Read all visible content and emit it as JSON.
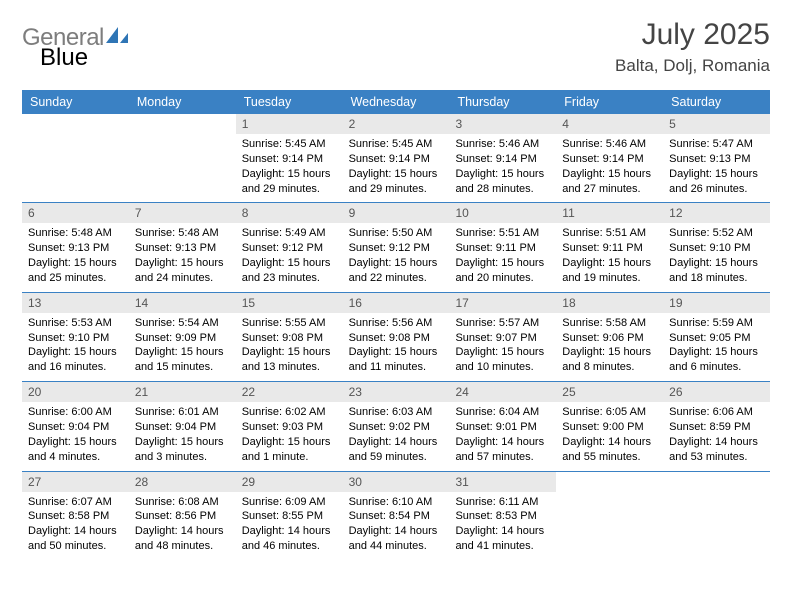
{
  "colors": {
    "accent": "#3a81c4",
    "daynum_bg": "#e9e9e9",
    "daynum_fg": "#555555",
    "body_fg": "#000000",
    "title_fg": "#444444",
    "logo_gray": "#7d7d7d",
    "logo_blue": "#2f75b5",
    "background": "#ffffff"
  },
  "logo": {
    "word1": "General",
    "word2": "Blue"
  },
  "header": {
    "title": "July 2025",
    "location": "Balta, Dolj, Romania"
  },
  "weekdays": [
    "Sunday",
    "Monday",
    "Tuesday",
    "Wednesday",
    "Thursday",
    "Friday",
    "Saturday"
  ],
  "weeks": [
    [
      {
        "n": "",
        "empty": true,
        "sunrise": "",
        "sunset": "",
        "daylight": ""
      },
      {
        "n": "",
        "empty": true,
        "sunrise": "",
        "sunset": "",
        "daylight": ""
      },
      {
        "n": "1",
        "sunrise": "Sunrise: 5:45 AM",
        "sunset": "Sunset: 9:14 PM",
        "daylight": "Daylight: 15 hours and 29 minutes."
      },
      {
        "n": "2",
        "sunrise": "Sunrise: 5:45 AM",
        "sunset": "Sunset: 9:14 PM",
        "daylight": "Daylight: 15 hours and 29 minutes."
      },
      {
        "n": "3",
        "sunrise": "Sunrise: 5:46 AM",
        "sunset": "Sunset: 9:14 PM",
        "daylight": "Daylight: 15 hours and 28 minutes."
      },
      {
        "n": "4",
        "sunrise": "Sunrise: 5:46 AM",
        "sunset": "Sunset: 9:14 PM",
        "daylight": "Daylight: 15 hours and 27 minutes."
      },
      {
        "n": "5",
        "sunrise": "Sunrise: 5:47 AM",
        "sunset": "Sunset: 9:13 PM",
        "daylight": "Daylight: 15 hours and 26 minutes."
      }
    ],
    [
      {
        "n": "6",
        "sunrise": "Sunrise: 5:48 AM",
        "sunset": "Sunset: 9:13 PM",
        "daylight": "Daylight: 15 hours and 25 minutes."
      },
      {
        "n": "7",
        "sunrise": "Sunrise: 5:48 AM",
        "sunset": "Sunset: 9:13 PM",
        "daylight": "Daylight: 15 hours and 24 minutes."
      },
      {
        "n": "8",
        "sunrise": "Sunrise: 5:49 AM",
        "sunset": "Sunset: 9:12 PM",
        "daylight": "Daylight: 15 hours and 23 minutes."
      },
      {
        "n": "9",
        "sunrise": "Sunrise: 5:50 AM",
        "sunset": "Sunset: 9:12 PM",
        "daylight": "Daylight: 15 hours and 22 minutes."
      },
      {
        "n": "10",
        "sunrise": "Sunrise: 5:51 AM",
        "sunset": "Sunset: 9:11 PM",
        "daylight": "Daylight: 15 hours and 20 minutes."
      },
      {
        "n": "11",
        "sunrise": "Sunrise: 5:51 AM",
        "sunset": "Sunset: 9:11 PM",
        "daylight": "Daylight: 15 hours and 19 minutes."
      },
      {
        "n": "12",
        "sunrise": "Sunrise: 5:52 AM",
        "sunset": "Sunset: 9:10 PM",
        "daylight": "Daylight: 15 hours and 18 minutes."
      }
    ],
    [
      {
        "n": "13",
        "sunrise": "Sunrise: 5:53 AM",
        "sunset": "Sunset: 9:10 PM",
        "daylight": "Daylight: 15 hours and 16 minutes."
      },
      {
        "n": "14",
        "sunrise": "Sunrise: 5:54 AM",
        "sunset": "Sunset: 9:09 PM",
        "daylight": "Daylight: 15 hours and 15 minutes."
      },
      {
        "n": "15",
        "sunrise": "Sunrise: 5:55 AM",
        "sunset": "Sunset: 9:08 PM",
        "daylight": "Daylight: 15 hours and 13 minutes."
      },
      {
        "n": "16",
        "sunrise": "Sunrise: 5:56 AM",
        "sunset": "Sunset: 9:08 PM",
        "daylight": "Daylight: 15 hours and 11 minutes."
      },
      {
        "n": "17",
        "sunrise": "Sunrise: 5:57 AM",
        "sunset": "Sunset: 9:07 PM",
        "daylight": "Daylight: 15 hours and 10 minutes."
      },
      {
        "n": "18",
        "sunrise": "Sunrise: 5:58 AM",
        "sunset": "Sunset: 9:06 PM",
        "daylight": "Daylight: 15 hours and 8 minutes."
      },
      {
        "n": "19",
        "sunrise": "Sunrise: 5:59 AM",
        "sunset": "Sunset: 9:05 PM",
        "daylight": "Daylight: 15 hours and 6 minutes."
      }
    ],
    [
      {
        "n": "20",
        "sunrise": "Sunrise: 6:00 AM",
        "sunset": "Sunset: 9:04 PM",
        "daylight": "Daylight: 15 hours and 4 minutes."
      },
      {
        "n": "21",
        "sunrise": "Sunrise: 6:01 AM",
        "sunset": "Sunset: 9:04 PM",
        "daylight": "Daylight: 15 hours and 3 minutes."
      },
      {
        "n": "22",
        "sunrise": "Sunrise: 6:02 AM",
        "sunset": "Sunset: 9:03 PM",
        "daylight": "Daylight: 15 hours and 1 minute."
      },
      {
        "n": "23",
        "sunrise": "Sunrise: 6:03 AM",
        "sunset": "Sunset: 9:02 PM",
        "daylight": "Daylight: 14 hours and 59 minutes."
      },
      {
        "n": "24",
        "sunrise": "Sunrise: 6:04 AM",
        "sunset": "Sunset: 9:01 PM",
        "daylight": "Daylight: 14 hours and 57 minutes."
      },
      {
        "n": "25",
        "sunrise": "Sunrise: 6:05 AM",
        "sunset": "Sunset: 9:00 PM",
        "daylight": "Daylight: 14 hours and 55 minutes."
      },
      {
        "n": "26",
        "sunrise": "Sunrise: 6:06 AM",
        "sunset": "Sunset: 8:59 PM",
        "daylight": "Daylight: 14 hours and 53 minutes."
      }
    ],
    [
      {
        "n": "27",
        "sunrise": "Sunrise: 6:07 AM",
        "sunset": "Sunset: 8:58 PM",
        "daylight": "Daylight: 14 hours and 50 minutes."
      },
      {
        "n": "28",
        "sunrise": "Sunrise: 6:08 AM",
        "sunset": "Sunset: 8:56 PM",
        "daylight": "Daylight: 14 hours and 48 minutes."
      },
      {
        "n": "29",
        "sunrise": "Sunrise: 6:09 AM",
        "sunset": "Sunset: 8:55 PM",
        "daylight": "Daylight: 14 hours and 46 minutes."
      },
      {
        "n": "30",
        "sunrise": "Sunrise: 6:10 AM",
        "sunset": "Sunset: 8:54 PM",
        "daylight": "Daylight: 14 hours and 44 minutes."
      },
      {
        "n": "31",
        "sunrise": "Sunrise: 6:11 AM",
        "sunset": "Sunset: 8:53 PM",
        "daylight": "Daylight: 14 hours and 41 minutes."
      },
      {
        "n": "",
        "empty": true,
        "sunrise": "",
        "sunset": "",
        "daylight": ""
      },
      {
        "n": "",
        "empty": true,
        "sunrise": "",
        "sunset": "",
        "daylight": ""
      }
    ]
  ]
}
